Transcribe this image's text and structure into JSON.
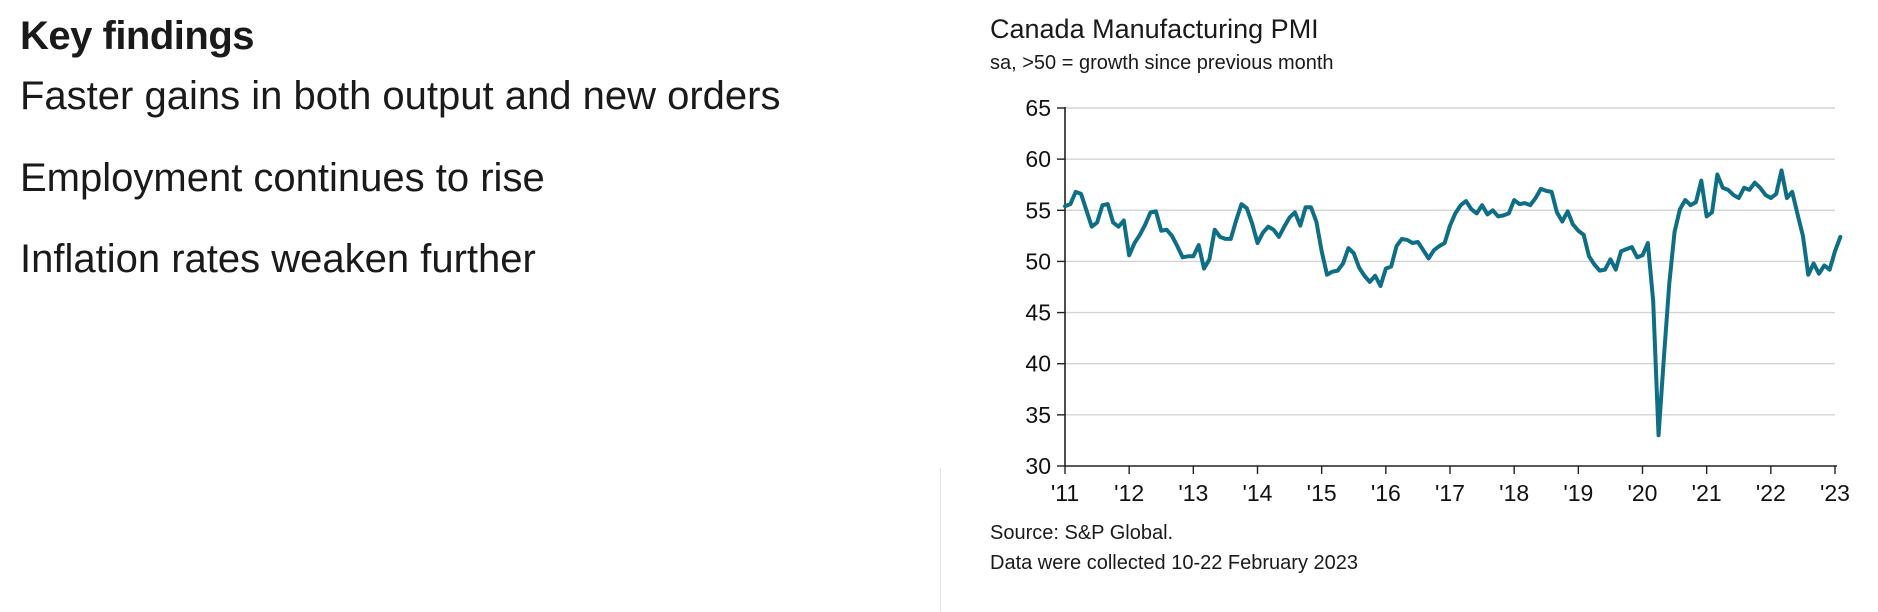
{
  "left": {
    "heading": "Key findings",
    "findings": [
      "Faster gains in both output and new orders",
      "Employment continues to rise",
      "Inflation rates weaken further"
    ]
  },
  "chart": {
    "title": "Canada Manufacturing PMI",
    "subtitle": "sa, >50 = growth since previous month",
    "source": "Source: S&P Global.",
    "collected": "Data were collected 10-22 February 2023",
    "line_color": "#0e6e86"
  },
  "chart_data": {
    "type": "line",
    "title": "Canada Manufacturing PMI",
    "subtitle": "sa, >50 = growth since previous month",
    "xlabel": "",
    "ylabel": "",
    "ylim": [
      30,
      65
    ],
    "yticks": [
      30,
      35,
      40,
      45,
      50,
      55,
      60,
      65
    ],
    "xticks": [
      "'11",
      "'12",
      "'13",
      "'14",
      "'15",
      "'16",
      "'17",
      "'18",
      "'19",
      "'20",
      "'21",
      "'22",
      "'23"
    ],
    "grid": "horizontal",
    "legend": "none",
    "series": [
      {
        "start": "2011-01",
        "values": [
          55.4,
          55.6,
          56.8,
          56.6,
          55.0,
          53.4,
          53.8,
          55.5,
          55.6,
          53.8,
          53.4,
          54.0,
          50.6,
          51.8,
          52.6,
          53.6,
          54.8,
          54.9,
          53.0,
          53.1,
          52.5,
          51.5,
          50.4,
          50.5,
          50.5,
          51.6,
          49.3,
          50.2,
          53.1,
          52.4,
          52.2,
          52.2,
          54.0,
          55.6,
          55.2,
          53.7,
          51.8,
          52.8,
          53.4,
          53.1,
          52.4,
          53.4,
          54.3,
          54.8,
          53.5,
          55.3,
          55.3,
          53.9,
          51.0,
          48.7,
          49.0,
          49.1,
          49.8,
          51.3,
          50.8,
          49.4,
          48.6,
          48.0,
          48.6,
          47.6,
          49.3,
          49.5,
          51.5,
          52.2,
          52.1,
          51.8,
          51.9,
          51.1,
          50.3,
          51.1,
          51.5,
          51.8,
          53.5,
          54.7,
          55.5,
          55.9,
          55.1,
          54.7,
          55.5,
          54.6,
          55.0,
          54.4,
          54.5,
          54.7,
          56.0,
          55.6,
          55.7,
          55.5,
          56.2,
          57.1,
          56.9,
          56.8,
          54.8,
          53.9,
          54.9,
          53.6,
          53.0,
          52.6,
          50.5,
          49.7,
          49.1,
          49.2,
          50.2,
          49.2,
          51.0,
          51.2,
          51.4,
          50.4,
          50.6,
          51.8,
          46.1,
          33.0,
          40.6,
          47.8,
          52.9,
          55.1,
          56.0,
          55.5,
          55.8,
          57.9,
          54.4,
          54.8,
          58.5,
          57.2,
          57.0,
          56.5,
          56.2,
          57.2,
          57.0,
          57.7,
          57.2,
          56.5,
          56.2,
          56.6,
          58.9,
          56.2,
          56.8,
          54.6,
          52.5,
          48.7,
          49.8,
          48.8,
          49.6,
          49.2,
          51.0,
          52.4
        ]
      }
    ],
    "annotations": [
      "Source: S&P Global.",
      "Data were collected 10-22 February 2023"
    ]
  }
}
